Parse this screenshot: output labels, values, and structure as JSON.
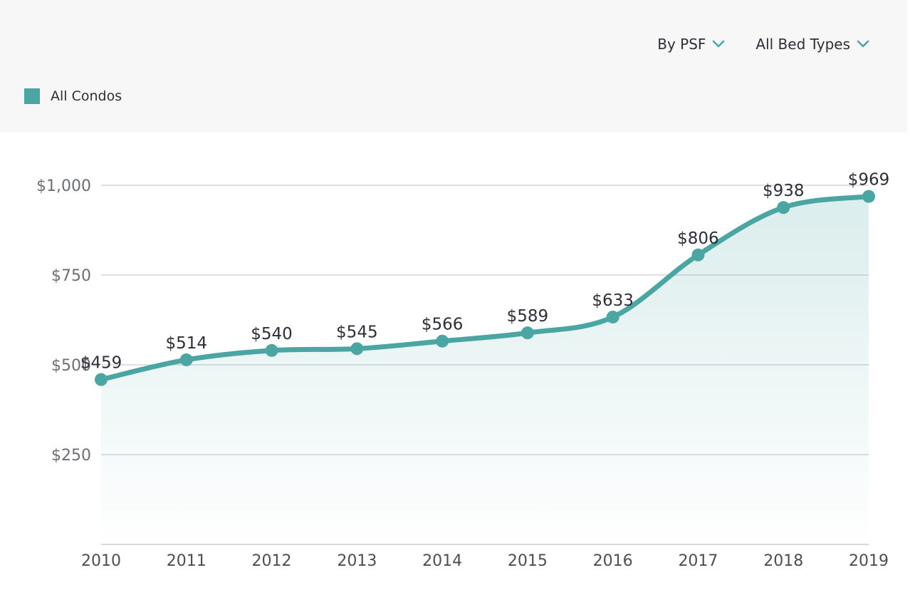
{
  "filters": {
    "metric_label": "By PSF",
    "bed_types_label": "All Bed Types",
    "accent_color": "#4aa5a3"
  },
  "legend": {
    "label": "All Condos",
    "color": "#4aa5a3"
  },
  "chart_data": {
    "type": "area",
    "x": [
      "2010",
      "2011",
      "2012",
      "2013",
      "2014",
      "2015",
      "2016",
      "2017",
      "2018",
      "2019"
    ],
    "series": [
      {
        "name": "All Condos",
        "values": [
          459,
          514,
          540,
          545,
          566,
          589,
          633,
          806,
          938,
          969
        ],
        "labels": [
          "$459",
          "$514",
          "$540",
          "$545",
          "$566",
          "$589",
          "$633",
          "$806",
          "$938",
          "$969"
        ],
        "color": "#4aa5a3"
      }
    ],
    "yticks": [
      250,
      500,
      750,
      1000
    ],
    "ytick_labels": [
      "$250",
      "$500",
      "$750",
      "$1,000"
    ],
    "ylim": [
      0,
      1000
    ],
    "grid": true,
    "title": "",
    "xlabel": "",
    "ylabel": ""
  }
}
